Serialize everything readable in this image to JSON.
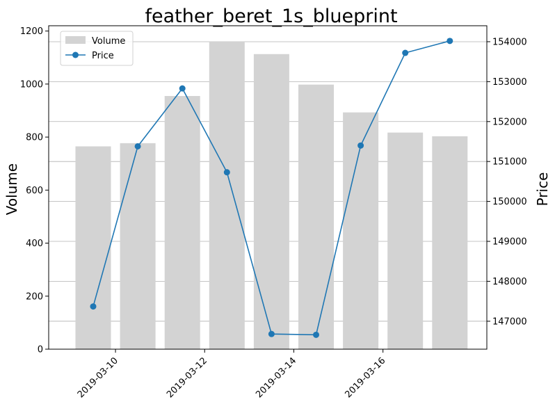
{
  "chart_data": {
    "type": "bar",
    "title": "feather_beret_1s_blueprint",
    "xlabel": "",
    "ylabel_left": "Volume",
    "ylabel_right": "Price",
    "x": [
      "2019-03-09",
      "2019-03-10",
      "2019-03-11",
      "2019-03-12",
      "2019-03-13",
      "2019-03-14",
      "2019-03-15",
      "2019-03-16",
      "2019-03-17"
    ],
    "x_ticks": [
      "2019-03-10",
      "2019-03-12",
      "2019-03-14",
      "2019-03-16"
    ],
    "series": [
      {
        "name": "Volume",
        "type": "bar",
        "axis": "left",
        "color": "#d3d3d3",
        "values": [
          765,
          777,
          955,
          1160,
          1113,
          998,
          893,
          817,
          803
        ]
      },
      {
        "name": "Price",
        "type": "line",
        "axis": "right",
        "color": "#1f77b4",
        "values": [
          147370,
          151380,
          152830,
          150730,
          146680,
          146660,
          151400,
          153720,
          154020
        ]
      }
    ],
    "left_axis": {
      "ylim": [
        0,
        1220
      ],
      "ticks": [
        0,
        200,
        400,
        600,
        800,
        1000,
        1200
      ]
    },
    "right_axis": {
      "ylim": [
        146300,
        154400
      ],
      "ticks": [
        147000,
        148000,
        149000,
        150000,
        151000,
        152000,
        153000,
        154000
      ]
    },
    "grid": "horizontal on right axis",
    "legend": {
      "placement": "top-left",
      "entries": [
        "Volume",
        "Price"
      ]
    }
  }
}
